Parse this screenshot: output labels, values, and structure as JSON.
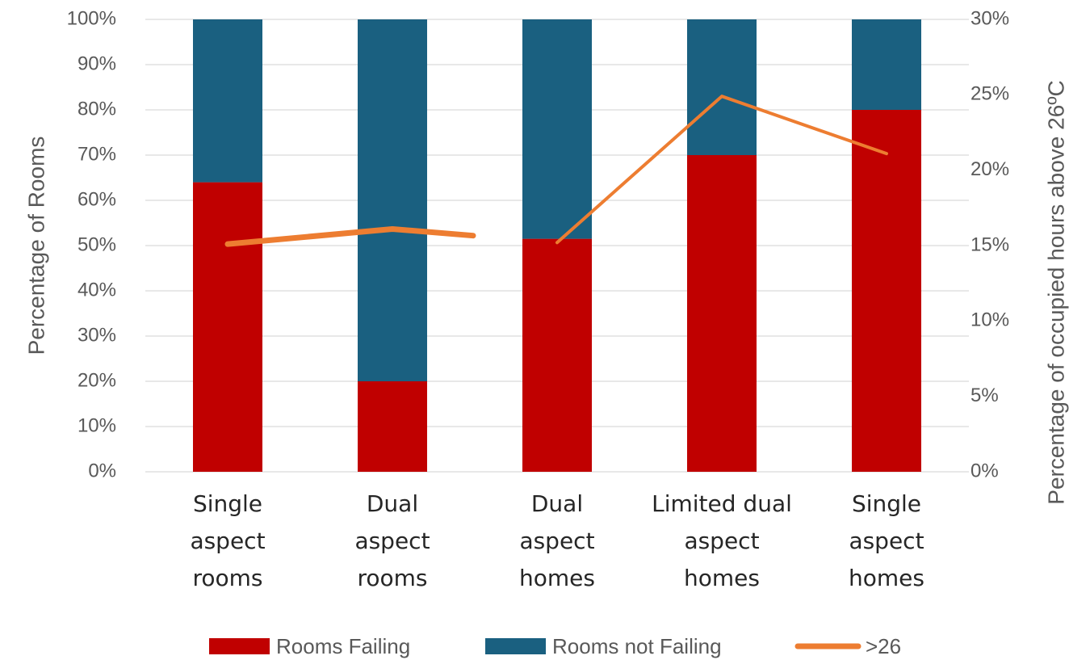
{
  "chart_data": {
    "type": "bar",
    "stacked": true,
    "categories": [
      [
        "Single",
        "aspect",
        "rooms"
      ],
      [
        "Dual",
        "aspect",
        "rooms"
      ],
      [
        "Dual",
        "aspect",
        "homes"
      ],
      [
        "Limited dual",
        "aspect",
        "homes"
      ],
      [
        "Single",
        "aspect",
        "homes"
      ]
    ],
    "series": [
      {
        "name": "Rooms Failing",
        "type": "bar",
        "axis": "left",
        "color": "#C00000",
        "values": [
          64,
          20,
          51.5,
          70,
          80
        ]
      },
      {
        "name": "Rooms not Failing",
        "type": "bar",
        "axis": "left",
        "color": "#1A6080",
        "values": [
          36,
          80,
          48.5,
          30,
          20
        ]
      },
      {
        "name": ">26",
        "type": "line",
        "axis": "right",
        "color": "#ED7D31",
        "values": [
          15.1,
          16.1,
          15.2,
          24.9,
          21.1
        ]
      }
    ],
    "ylabel": "Percentage of Rooms",
    "y2label": "Percentage of occupied hours above 26ºC",
    "ylim": [
      0,
      100
    ],
    "y2lim": [
      0,
      30
    ],
    "yticks": [
      "0%",
      "10%",
      "20%",
      "30%",
      "40%",
      "50%",
      "60%",
      "70%",
      "80%",
      "90%",
      "100%"
    ],
    "y2ticks": [
      "0%",
      "5%",
      "10%",
      "15%",
      "20%",
      "25%",
      "30%"
    ],
    "grid": true,
    "legend": "bottom"
  }
}
